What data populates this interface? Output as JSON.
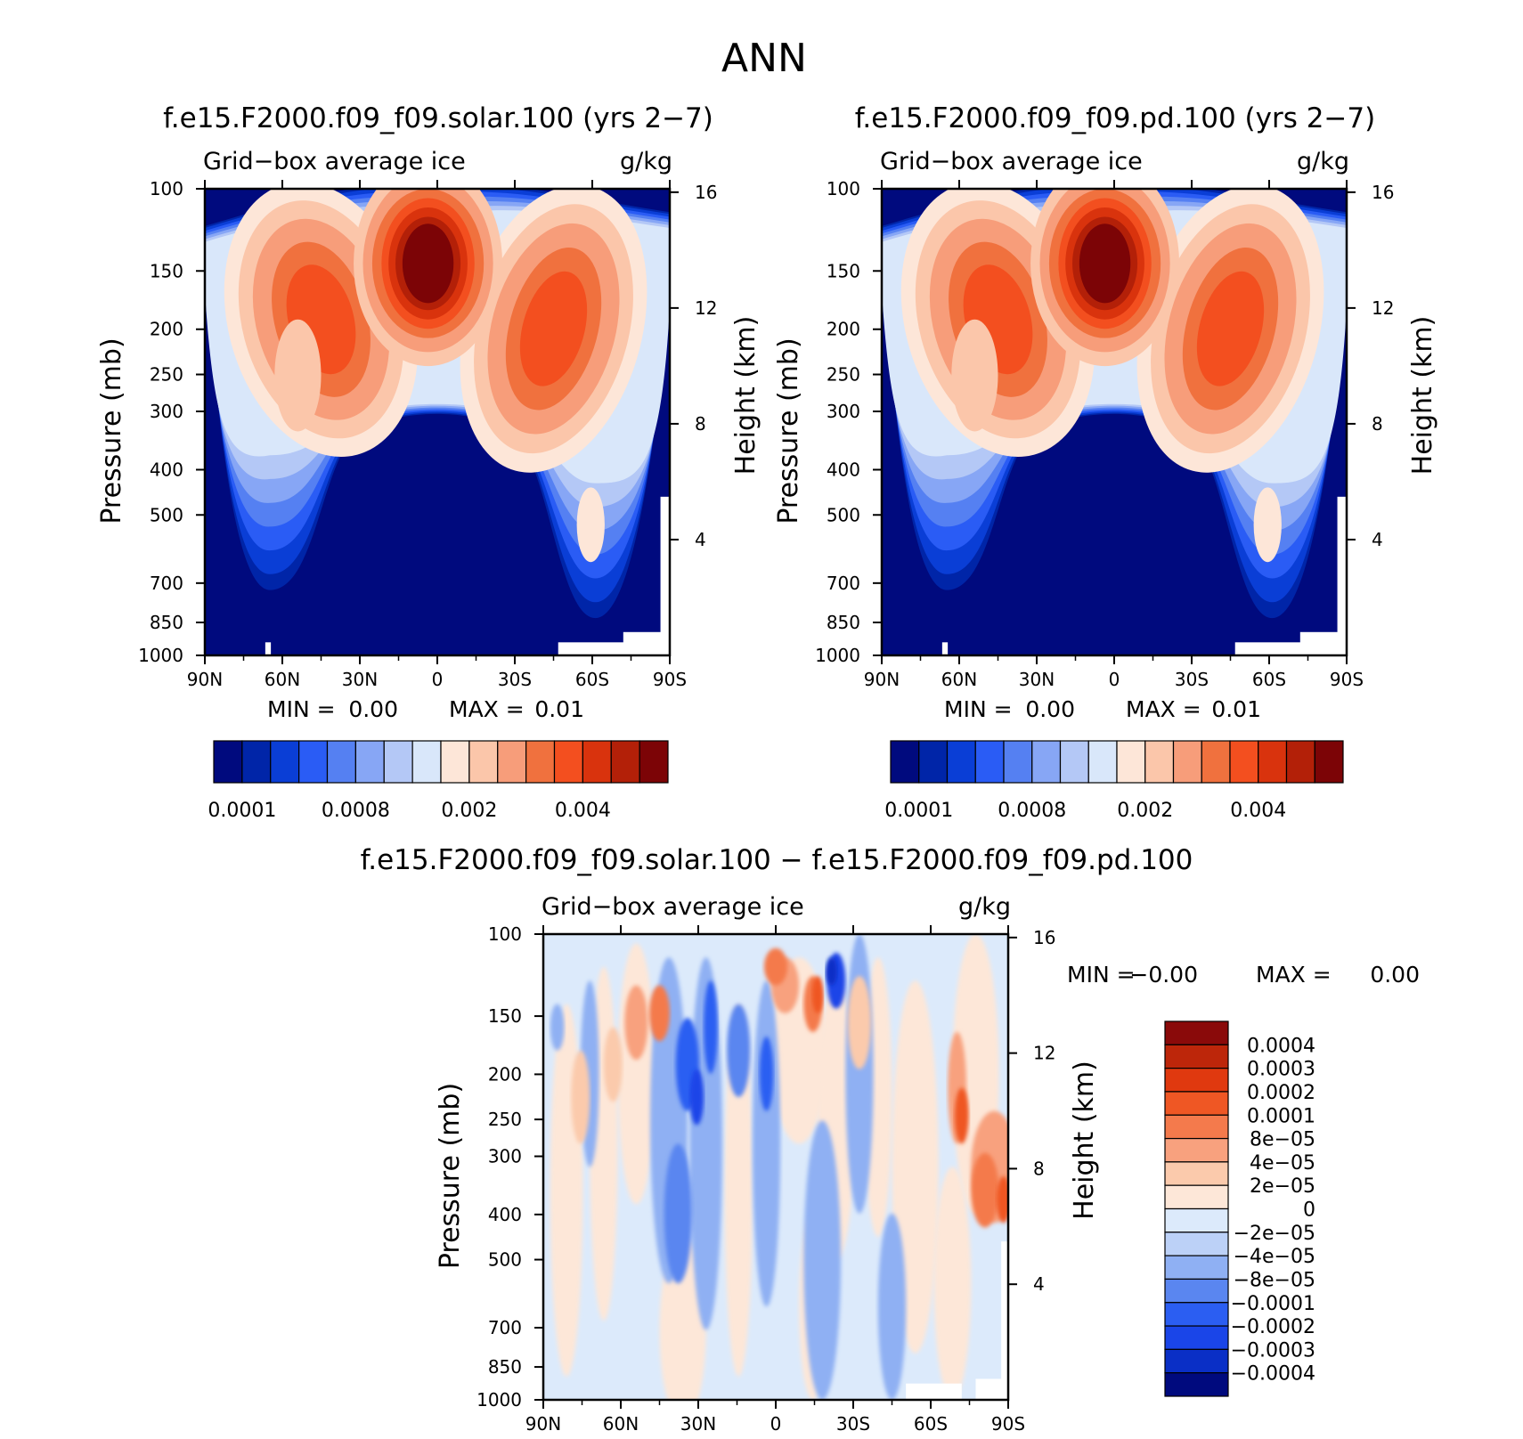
{
  "page_title": "ANN",
  "colors": {
    "seq_palette": [
      "#000a7e",
      "#0025a8",
      "#0a3ed6",
      "#2a5cf5",
      "#5580f2",
      "#87a6f5",
      "#b4c8f6",
      "#d9e7fa",
      "#fde6d8",
      "#fbc6aa",
      "#f79d7a",
      "#f0713e",
      "#f34f1f",
      "#d9330d",
      "#b32008",
      "#7c0406"
    ],
    "diff_palette": [
      "#000a7e",
      "#0a2fc6",
      "#1a45e8",
      "#2b5ef2",
      "#5a86f0",
      "#8fb0f3",
      "#bcd1f7",
      "#dceafb",
      "#fde7d8",
      "#fbcaac",
      "#f8a17e",
      "#f47a4c",
      "#ef5724",
      "#e0390f",
      "#bd260a",
      "#8a0a0a"
    ]
  },
  "chart_data": [
    {
      "id": "panel-solar",
      "type": "contour",
      "title": "f.e15.F2000.f09_f09.solar.100 (yrs 2−7)",
      "variable_label": "Grid−box average ice",
      "units_label": "g/kg",
      "xlabel": "",
      "ylabel": "Pressure (mb)",
      "y2label": "Height (km)",
      "x_ticks": [
        "90N",
        "60N",
        "30N",
        "0",
        "30S",
        "60S",
        "90S"
      ],
      "x_tick_values": [
        90,
        60,
        30,
        0,
        -30,
        -60,
        -90
      ],
      "xlim": [
        90,
        -90
      ],
      "y_ticks": [
        "100",
        "150",
        "200",
        "250",
        "300",
        "400",
        "500",
        "700",
        "850",
        "1000"
      ],
      "y_tick_values": [
        100,
        150,
        200,
        250,
        300,
        400,
        500,
        700,
        850,
        1000
      ],
      "ylim": [
        100,
        1000
      ],
      "y2_ticks": [
        "16",
        "12",
        "8",
        "4"
      ],
      "y2_tick_values": [
        16,
        12,
        8,
        4
      ],
      "min_label": "MIN =",
      "min_value": "0.00",
      "max_label": "MAX =",
      "max_value": "0.01",
      "colorbar_labels": [
        "0.0001",
        "0.0008",
        "0.002",
        "0.004"
      ],
      "colorbar_label_positions": [
        0,
        4,
        8,
        12
      ]
    },
    {
      "id": "panel-pd",
      "type": "contour",
      "title": "f.e15.F2000.f09_f09.pd.100 (yrs 2−7)",
      "variable_label": "Grid−box average ice",
      "units_label": "g/kg",
      "xlabel": "",
      "ylabel": "Pressure (mb)",
      "y2label": "Height (km)",
      "x_ticks": [
        "90N",
        "60N",
        "30N",
        "0",
        "30S",
        "60S",
        "90S"
      ],
      "x_tick_values": [
        90,
        60,
        30,
        0,
        -30,
        -60,
        -90
      ],
      "xlim": [
        90,
        -90
      ],
      "y_ticks": [
        "100",
        "150",
        "200",
        "250",
        "300",
        "400",
        "500",
        "700",
        "850",
        "1000"
      ],
      "y_tick_values": [
        100,
        150,
        200,
        250,
        300,
        400,
        500,
        700,
        850,
        1000
      ],
      "ylim": [
        100,
        1000
      ],
      "y2_ticks": [
        "16",
        "12",
        "8",
        "4"
      ],
      "y2_tick_values": [
        16,
        12,
        8,
        4
      ],
      "min_label": "MIN =",
      "min_value": "0.00",
      "max_label": "MAX =",
      "max_value": "0.01",
      "colorbar_labels": [
        "0.0001",
        "0.0008",
        "0.002",
        "0.004"
      ],
      "colorbar_label_positions": [
        0,
        4,
        8,
        12
      ]
    },
    {
      "id": "panel-diff",
      "type": "contour",
      "title": "f.e15.F2000.f09_f09.solar.100 − f.e15.F2000.f09_f09.pd.100",
      "variable_label": "Grid−box average ice",
      "units_label": "g/kg",
      "xlabel": "",
      "ylabel": "Pressure (mb)",
      "y2label": "Height (km)",
      "x_ticks": [
        "90N",
        "60N",
        "30N",
        "0",
        "30S",
        "60S",
        "90S"
      ],
      "x_tick_values": [
        90,
        60,
        30,
        0,
        -30,
        -60,
        -90
      ],
      "xlim": [
        90,
        -90
      ],
      "y_ticks": [
        "100",
        "150",
        "200",
        "250",
        "300",
        "400",
        "500",
        "700",
        "850",
        "1000"
      ],
      "y_tick_values": [
        100,
        150,
        200,
        250,
        300,
        400,
        500,
        700,
        850,
        1000
      ],
      "ylim": [
        100,
        1000
      ],
      "y2_ticks": [
        "16",
        "12",
        "8",
        "4"
      ],
      "y2_tick_values": [
        16,
        12,
        8,
        4
      ],
      "min_label": "MIN =",
      "min_value": "−0.00",
      "max_label": "MAX =",
      "max_value": "0.00",
      "colorbar_labels": [
        "0.0004",
        "0.0003",
        "0.0002",
        "0.0001",
        "8e−05",
        "4e−05",
        "2e−05",
        "0",
        "−2e−05",
        "−4e−05",
        "−8e−05",
        "−0.0001",
        "−0.0002",
        "−0.0003",
        "−0.0004"
      ]
    }
  ]
}
